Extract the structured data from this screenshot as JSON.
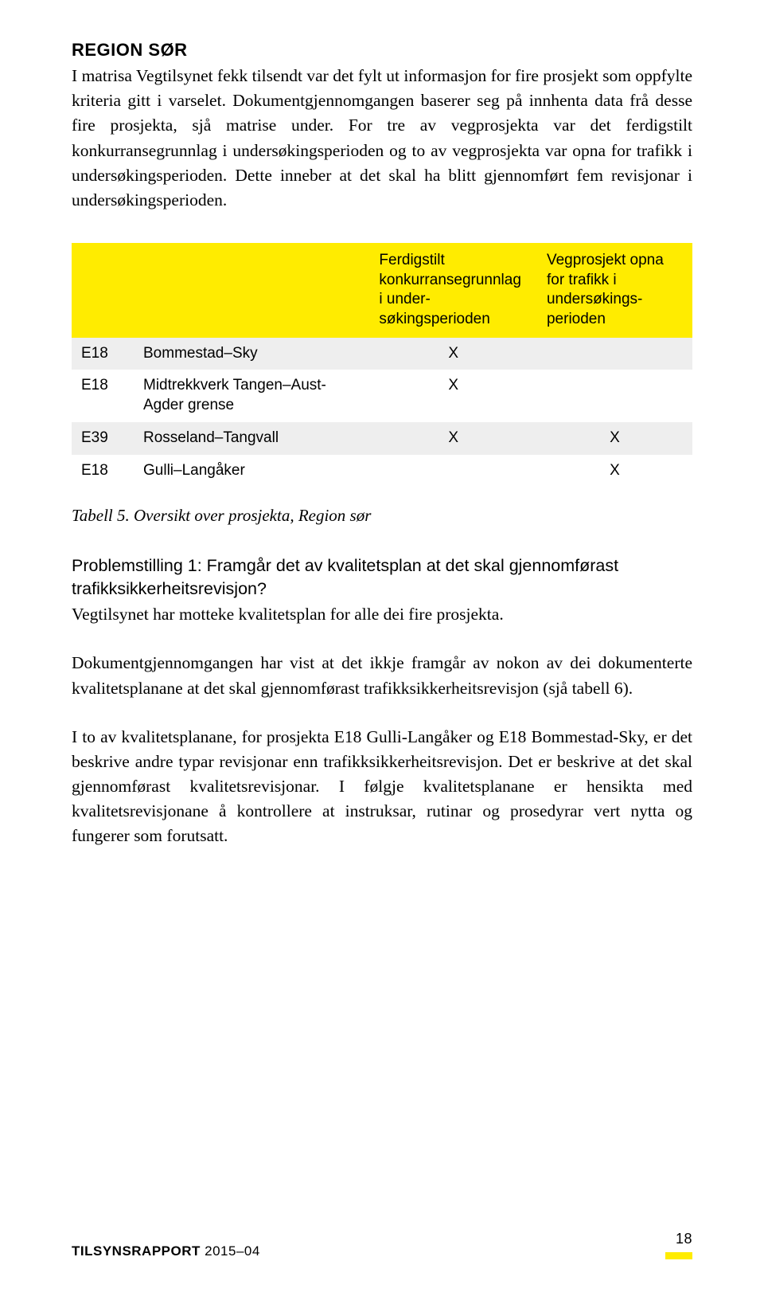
{
  "heading": "REGION SØR",
  "para1": "I matrisa Vegtilsynet fekk tilsendt var det fylt ut informasjon for fire prosjekt som oppfylte kriteria gitt i varselet. Dokumentgjennomgangen baserer seg på innhenta data frå desse fire prosjekta, sjå matrise under. For tre av vegprosjekta var det ferdigstilt konkurransegrunnlag i undersøkingsperioden og to av vegprosjekta var opna for trafikk i undersøkingsperioden. Dette inneber at det skal ha blitt gjennomført fem revisjonar i undersøkingsperioden.",
  "table": {
    "head_col2": "Ferdigstilt konkurranse­grunnlag i under­søkingsperioden",
    "head_col3": "Vegprosjekt opna for trafikk i undersøkings­perioden",
    "rows": [
      {
        "c0": "E18",
        "c1": "Bommestad–Sky",
        "c2": "X",
        "c3": "",
        "shade": true
      },
      {
        "c0": "E18",
        "c1": "Midtrekkverk Tangen–Aust-Agder grense",
        "c2": "X",
        "c3": "",
        "shade": false
      },
      {
        "c0": "E39",
        "c1": "Rosseland–Tangvall",
        "c2": "X",
        "c3": "X",
        "shade": true
      },
      {
        "c0": "E18",
        "c1": "Gulli–Langåker",
        "c2": "",
        "c3": "X",
        "shade": false
      }
    ]
  },
  "caption": "Tabell 5. Oversikt over prosjekta, Region sør",
  "subhead": "Problemstilling 1: Framgår det av kvalitetsplan at det skal gjennomførast trafikksikkerheitsrevisjon?",
  "para2": "Vegtilsynet har motteke kvalitetsplan for alle dei fire prosjekta.",
  "para3": "Dokumentgjennomgangen har vist at det ikkje framgår av nokon av dei dokumenterte kvalitetsplanane at det skal gjennomførast trafikksikkerheitsrevisjon (sjå tabell 6).",
  "para4": "I to av kvalitetsplanane, for prosjekta E18 Gulli-Langåker og E18 Bommestad-Sky, er det beskrive andre typar revisjonar enn trafikksikkerheitsrevisjon. Det er beskrive at det skal gjennomførast kvalitetsrevisjonar. I følgje kvalitetsplanane er hensikta med kvalitetsrevisjonane å kontrollere at instruksar, rutinar og prosedyrar vert nytta og fungerer som forutsatt.",
  "footer": {
    "title_bold": "TILSYNSRAPPORT",
    "title_rest": " 2015–04",
    "page": "18"
  },
  "colors": {
    "yellow": "#ffec00",
    "shade": "#eeeeee",
    "text": "#000000",
    "bg": "#ffffff"
  }
}
